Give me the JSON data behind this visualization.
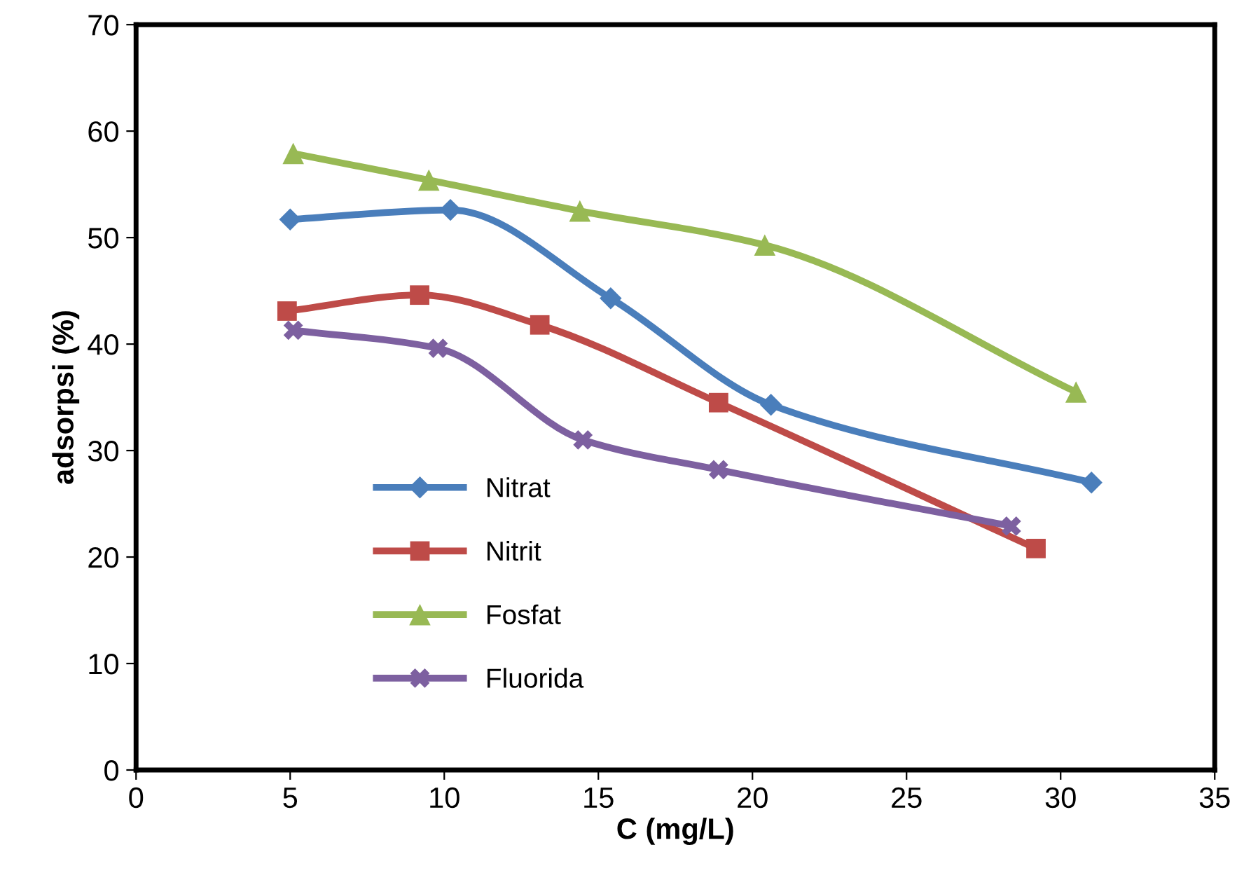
{
  "chart_data": {
    "type": "line",
    "xlabel": "C (mg/L)",
    "ylabel": "adsorpsi (%)",
    "xlim": [
      0,
      35
    ],
    "xticks": [
      0,
      5,
      10,
      15,
      20,
      25,
      30,
      35
    ],
    "ylim": [
      0,
      70
    ],
    "yticks": [
      0,
      10,
      20,
      30,
      40,
      50,
      60,
      70
    ],
    "grid": false,
    "legend": "bottom left",
    "series": [
      {
        "name": "Nitrat",
        "color": "#4a7ebb",
        "marker": "diamond",
        "x": [
          5.0,
          10.2,
          15.4,
          20.6,
          31.0
        ],
        "values": [
          51.7,
          52.6,
          44.3,
          34.3,
          27.0
        ]
      },
      {
        "name": "Nitrit",
        "color": "#be4b48",
        "marker": "square",
        "x": [
          4.9,
          9.2,
          13.1,
          18.9,
          29.2
        ],
        "values": [
          43.1,
          44.6,
          41.8,
          34.5,
          20.8
        ]
      },
      {
        "name": "Fosfat",
        "color": "#98b954",
        "marker": "triangle",
        "x": [
          5.1,
          9.5,
          14.4,
          20.4,
          30.5
        ],
        "values": [
          57.9,
          55.4,
          52.5,
          49.3,
          35.5
        ]
      },
      {
        "name": "Fluorida",
        "color": "#7d60a0",
        "marker": "cross",
        "x": [
          5.1,
          9.8,
          14.5,
          18.9,
          28.4
        ],
        "values": [
          41.3,
          39.6,
          31.0,
          28.2,
          22.9
        ]
      }
    ]
  }
}
